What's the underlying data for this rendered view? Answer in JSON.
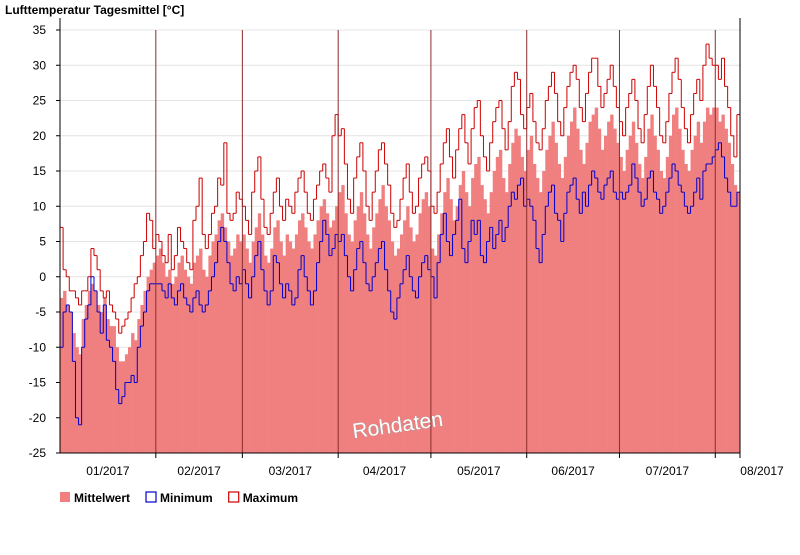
{
  "chart_data": {
    "type": "step",
    "title": "Lufttemperatur Tagesmittel [°C]",
    "watermark": "Rohdaten",
    "x_labels": [
      "01/2017",
      "02/2017",
      "03/2017",
      "04/2017",
      "05/2017",
      "06/2017",
      "07/2017",
      "08/2017"
    ],
    "ylim": [
      -25,
      35
    ],
    "yticks": [
      -25,
      -20,
      -15,
      -10,
      -5,
      0,
      5,
      10,
      15,
      20,
      25,
      30,
      35
    ],
    "grid": true,
    "series": [
      {
        "name": "Mittelwert",
        "color": "#f08080",
        "style": "bar",
        "values": [
          [
            -3,
            -2,
            -4,
            -5,
            -8,
            -10,
            -11,
            -6,
            -4,
            -2,
            -1,
            -2,
            -4,
            -5,
            -3,
            -6,
            -7,
            -7,
            -10,
            -12,
            -12,
            -11,
            -10,
            -8,
            -9,
            -6,
            -4,
            -2,
            0,
            1,
            2
          ],
          [
            3,
            4,
            2,
            0,
            1,
            -1,
            0,
            2,
            3,
            1,
            0,
            -1,
            2,
            3,
            4,
            1,
            0,
            3,
            5,
            6,
            8,
            9,
            7,
            5,
            3,
            4,
            6,
            5
          ],
          [
            6,
            4,
            2,
            5,
            7,
            9,
            6,
            3,
            2,
            4,
            7,
            8,
            5,
            3,
            6,
            5,
            4,
            6,
            8,
            9,
            7,
            5,
            4,
            6,
            8,
            10,
            11,
            9,
            7,
            8,
            10
          ],
          [
            12,
            13,
            9,
            6,
            5,
            8,
            10,
            12,
            9,
            6,
            4,
            7,
            9,
            11,
            13,
            10,
            8,
            5,
            3,
            4,
            6,
            8,
            10,
            7,
            5,
            6,
            9,
            11,
            12,
            10
          ],
          [
            4,
            3,
            6,
            9,
            12,
            14,
            11,
            8,
            10,
            13,
            15,
            12,
            10,
            14,
            16,
            17,
            13,
            11,
            9,
            12,
            15,
            17,
            18,
            14,
            12,
            16,
            19,
            21,
            20,
            17,
            15
          ],
          [
            18,
            20,
            16,
            14,
            12,
            15,
            18,
            20,
            22,
            19,
            16,
            14,
            17,
            20,
            22,
            24,
            21,
            18,
            16,
            19,
            22,
            23,
            24,
            21,
            18,
            20,
            22,
            23,
            21,
            19
          ],
          [
            17,
            15,
            18,
            20,
            22,
            19,
            16,
            14,
            17,
            21,
            23,
            20,
            18,
            15,
            14,
            17,
            20,
            23,
            24,
            21,
            18,
            16,
            15,
            18,
            20,
            22,
            19,
            22,
            24,
            23,
            24
          ],
          [
            24,
            22,
            23,
            21,
            19,
            16,
            13,
            12
          ]
        ]
      },
      {
        "name": "Minimum",
        "color": "#0000cc",
        "style": "step",
        "values": [
          [
            -10,
            -5,
            -4,
            -5,
            -12,
            -20,
            -21,
            -10,
            -6,
            -4,
            0,
            -2,
            -5,
            -8,
            -4,
            -9,
            -10,
            -12,
            -16,
            -18,
            -17,
            -15,
            -15,
            -14,
            -15,
            -10,
            -7,
            -5,
            -2,
            -1,
            -1
          ],
          [
            -1,
            -1,
            -2,
            -3,
            -1,
            -3,
            -4,
            -2,
            -1,
            -3,
            -4,
            -5,
            -3,
            -2,
            -4,
            -5,
            -4,
            -2,
            0,
            2,
            5,
            7,
            5,
            2,
            -1,
            -2,
            0,
            -1
          ],
          [
            1,
            -1,
            -3,
            0,
            3,
            5,
            1,
            -2,
            -4,
            -2,
            3,
            2,
            -1,
            -3,
            -1,
            -2,
            -4,
            -3,
            1,
            3,
            0,
            -2,
            -4,
            -2,
            2,
            5,
            8,
            6,
            3,
            4,
            6
          ],
          [
            5,
            6,
            3,
            0,
            -2,
            1,
            4,
            5,
            2,
            -1,
            -2,
            0,
            2,
            4,
            5,
            1,
            -2,
            -5,
            -6,
            -3,
            -1,
            1,
            3,
            0,
            -2,
            -3,
            0,
            2,
            3,
            1
          ],
          [
            0,
            -3,
            2,
            6,
            9,
            5,
            3,
            6,
            8,
            11,
            4,
            2,
            5,
            8,
            6,
            8,
            3,
            2,
            5,
            7,
            4,
            6,
            8,
            5,
            7,
            10,
            12,
            11,
            13,
            14,
            10
          ],
          [
            11,
            10,
            8,
            4,
            2,
            6,
            10,
            12,
            13,
            9,
            8,
            5,
            9,
            12,
            13,
            14,
            11,
            9,
            12,
            10,
            13,
            15,
            14,
            12,
            11,
            13,
            14,
            15,
            12,
            11
          ],
          [
            12,
            11,
            12,
            13,
            16,
            14,
            12,
            10,
            11,
            14,
            15,
            12,
            11,
            9,
            10,
            12,
            14,
            16,
            15,
            13,
            12,
            10,
            9,
            10,
            12,
            14,
            11,
            15,
            16,
            16,
            17
          ],
          [
            18,
            19,
            17,
            14,
            12,
            10,
            10,
            12
          ]
        ]
      },
      {
        "name": "Maximum",
        "color": "#cc0000",
        "style": "step",
        "values": [
          [
            7,
            1,
            0,
            -2,
            -2,
            -3,
            -4,
            -2,
            -2,
            0,
            4,
            3,
            1,
            -2,
            -3,
            -2,
            -4,
            -5,
            -6,
            -8,
            -7,
            -6,
            -5,
            -3,
            -1,
            0,
            3,
            5,
            9,
            8,
            4
          ],
          [
            6,
            5,
            3,
            2,
            6,
            1,
            3,
            7,
            5,
            4,
            2,
            1,
            8,
            10,
            14,
            6,
            4,
            6,
            9,
            10,
            14,
            13,
            19,
            9,
            8,
            9,
            12,
            11
          ],
          [
            10,
            8,
            6,
            12,
            15,
            17,
            11,
            7,
            6,
            9,
            12,
            14,
            10,
            8,
            11,
            10,
            9,
            12,
            14,
            15,
            12,
            9,
            8,
            11,
            13,
            15,
            16,
            14,
            12,
            20,
            23
          ],
          [
            20,
            21,
            16,
            11,
            9,
            14,
            17,
            19,
            15,
            10,
            8,
            12,
            15,
            18,
            19,
            16,
            13,
            9,
            7,
            8,
            11,
            14,
            16,
            12,
            9,
            10,
            14,
            16,
            17,
            15
          ],
          [
            10,
            9,
            12,
            16,
            19,
            21,
            17,
            14,
            18,
            21,
            23,
            19,
            16,
            21,
            24,
            25,
            20,
            17,
            15,
            19,
            22,
            24,
            25,
            21,
            18,
            22,
            27,
            29,
            28,
            23,
            21
          ],
          [
            24,
            26,
            22,
            19,
            18,
            21,
            25,
            27,
            29,
            26,
            22,
            20,
            24,
            27,
            29,
            30,
            28,
            24,
            22,
            26,
            29,
            31,
            31,
            27,
            24,
            26,
            28,
            30,
            27,
            24
          ],
          [
            22,
            20,
            24,
            26,
            28,
            25,
            21,
            19,
            23,
            27,
            30,
            27,
            24,
            20,
            19,
            22,
            26,
            29,
            31,
            28,
            24,
            21,
            19,
            23,
            26,
            28,
            25,
            30,
            33,
            31,
            30
          ],
          [
            30,
            28,
            31,
            27,
            24,
            20,
            17,
            23
          ]
        ]
      }
    ]
  }
}
